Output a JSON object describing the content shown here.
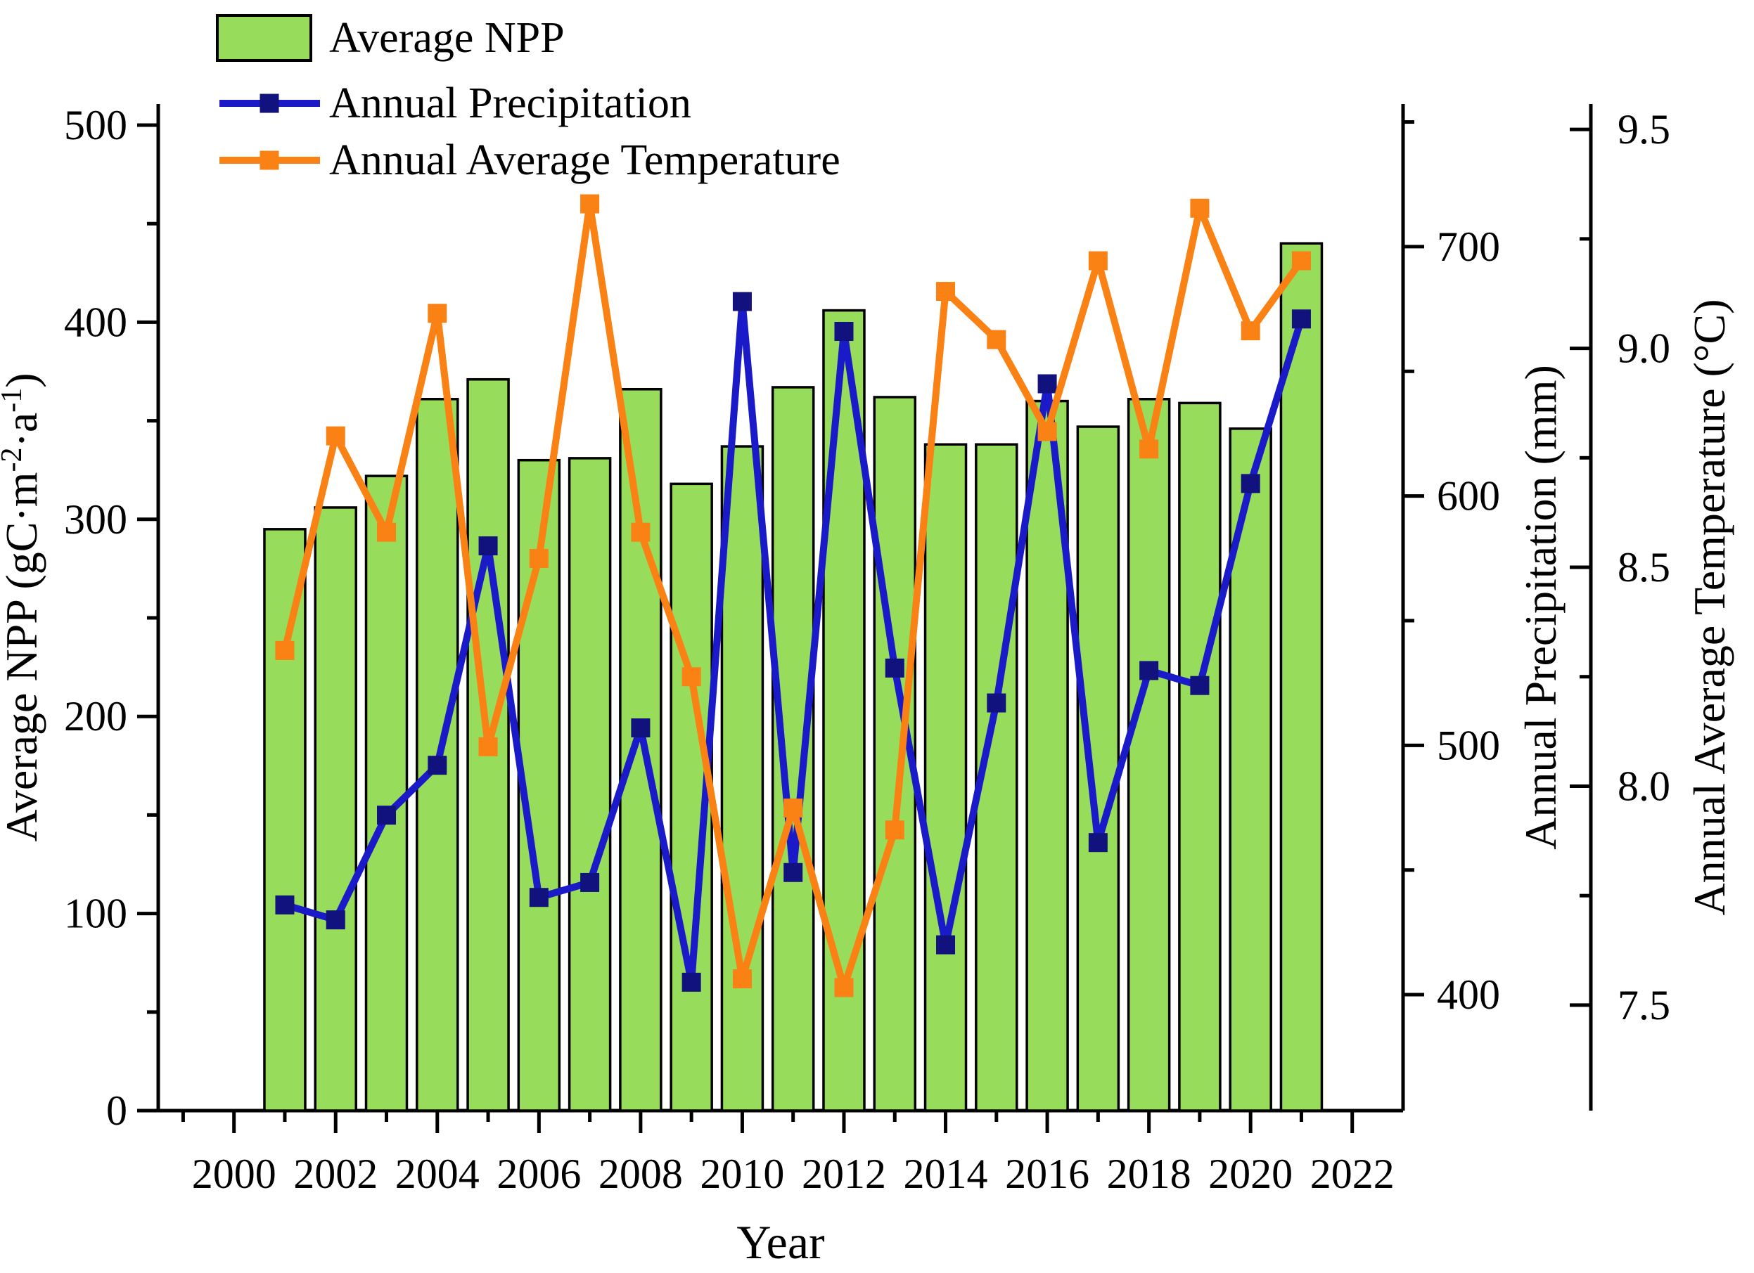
{
  "figure": {
    "background": "#FFFFFF",
    "colors": {
      "bar_fill": "#98DC5C",
      "bar_stroke": "#000000",
      "precip_line": "#1A1AC8",
      "precip_marker": "#12127E",
      "temp_line": "#FA8114",
      "temp_marker": "#FA8114",
      "axis": "#000000",
      "text": "#000000"
    },
    "legend": {
      "position": "top-left",
      "items": [
        {
          "label": "Average NPP",
          "swatch": "bar"
        },
        {
          "label": "Annual Precipitation",
          "swatch": "line",
          "series": "precip"
        },
        {
          "label": "Annual Average Temperature",
          "swatch": "line",
          "series": "temp"
        }
      ]
    }
  },
  "chart_data": {
    "type": "bar+line",
    "title": "",
    "grid": false,
    "legend_position": "top-left",
    "x_years": [
      2001,
      2002,
      2003,
      2004,
      2005,
      2006,
      2007,
      2008,
      2009,
      2010,
      2011,
      2012,
      2013,
      2014,
      2015,
      2016,
      2017,
      2018,
      2019,
      2020,
      2021
    ],
    "series": [
      {
        "name": "Average NPP",
        "type": "bar",
        "axis": "npp",
        "unit": "gC·m⁻²·a⁻¹",
        "values": [
          295,
          306,
          322,
          361,
          371,
          330,
          331,
          366,
          318,
          337,
          367,
          406,
          362,
          338,
          338,
          360,
          347,
          361,
          359,
          346,
          440
        ]
      },
      {
        "name": "Annual Precipitation",
        "type": "line",
        "axis": "precip",
        "unit": "mm",
        "values": [
          436,
          430,
          472,
          492,
          580,
          439,
          445,
          507,
          405,
          678,
          449,
          666,
          531,
          420,
          517,
          645,
          461,
          530,
          524,
          605,
          671
        ]
      },
      {
        "name": "Annual Average Temperature",
        "type": "line",
        "axis": "temp",
        "unit": "°C",
        "values": [
          8.31,
          8.8,
          8.58,
          9.08,
          8.09,
          8.52,
          9.33,
          8.58,
          8.25,
          7.56,
          7.95,
          7.54,
          7.9,
          9.13,
          9.02,
          8.81,
          9.2,
          8.77,
          9.32,
          9.04,
          9.2
        ]
      }
    ],
    "axes": {
      "x": {
        "label": "Year",
        "range": [
          1998.51,
          2023.0
        ],
        "major_ticks": [
          {
            "v": 2000,
            "label": "2000"
          },
          {
            "v": 2002,
            "label": "2002"
          },
          {
            "v": 2004,
            "label": "2004"
          },
          {
            "v": 2006,
            "label": "2006"
          },
          {
            "v": 2008,
            "label": "2008"
          },
          {
            "v": 2010,
            "label": "2010"
          },
          {
            "v": 2012,
            "label": "2012"
          },
          {
            "v": 2014,
            "label": "2014"
          },
          {
            "v": 2016,
            "label": "2016"
          },
          {
            "v": 2018,
            "label": "2018"
          },
          {
            "v": 2020,
            "label": "2020"
          },
          {
            "v": 2022,
            "label": "2022"
          }
        ],
        "minor_ticks": [
          1999,
          2001,
          2003,
          2005,
          2007,
          2009,
          2011,
          2013,
          2015,
          2017,
          2019,
          2021
        ]
      },
      "npp": {
        "label": "Average NPP (gC·m⁻²·a⁻¹)",
        "label_parts": [
          {
            "t": "Average NPP (gC·m"
          },
          {
            "t": "-2",
            "sup": true
          },
          {
            "t": "·a"
          },
          {
            "t": "-1",
            "sup": true
          },
          {
            "t": ")"
          }
        ],
        "side": "left",
        "range": [
          0,
          510.7
        ],
        "major_ticks": [
          {
            "v": 0,
            "label": "0"
          },
          {
            "v": 100,
            "label": "100"
          },
          {
            "v": 200,
            "label": "200"
          },
          {
            "v": 300,
            "label": "300"
          },
          {
            "v": 400,
            "label": "400"
          },
          {
            "v": 500,
            "label": "500"
          }
        ],
        "minor_ticks": [
          50,
          150,
          250,
          350,
          450
        ]
      },
      "precip": {
        "label": "Annual Precipitation (mm)",
        "side": "right",
        "range": [
          353.5,
          757.2
        ],
        "major_ticks": [
          {
            "v": 400,
            "label": "400"
          },
          {
            "v": 500,
            "label": "500"
          },
          {
            "v": 600,
            "label": "600"
          },
          {
            "v": 700,
            "label": "700"
          }
        ],
        "minor_ticks": [
          450,
          550,
          650,
          750
        ]
      },
      "temp": {
        "label": "Annual Average Temperature (°C)",
        "side": "right-offset",
        "range": [
          7.259,
          9.558
        ],
        "major_ticks": [
          {
            "v": 7.5,
            "label": "7.5"
          },
          {
            "v": 8.0,
            "label": "8.0"
          },
          {
            "v": 8.5,
            "label": "8.5"
          },
          {
            "v": 9.0,
            "label": "9.0"
          },
          {
            "v": 9.5,
            "label": "9.5"
          }
        ],
        "minor_ticks": [
          7.75,
          8.25,
          8.75,
          9.25
        ]
      }
    }
  }
}
